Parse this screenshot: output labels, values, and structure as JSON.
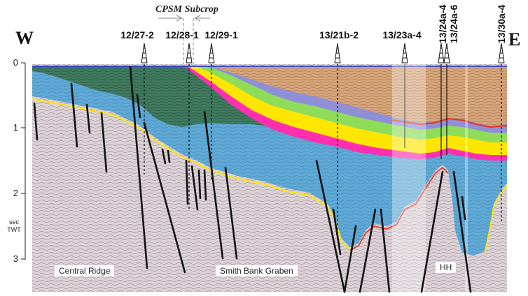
{
  "directions": {
    "west": "W",
    "east": "E"
  },
  "subcrop_label": "CPSM Subcrop",
  "wells": [
    {
      "name": "12/27-2"
    },
    {
      "name": "12/28-1"
    },
    {
      "name": "12/29-1"
    },
    {
      "name": "13/21b-2"
    },
    {
      "name": "13/23a-4"
    },
    {
      "name": "13/24a-4"
    },
    {
      "name": "13/24a-6"
    },
    {
      "name": "13/30a-4"
    }
  ],
  "time_axis": {
    "ticks": [
      "0",
      "1",
      "2",
      "3"
    ],
    "unit_line1": "sec",
    "unit_line2": "TWT"
  },
  "areas": {
    "central_ridge": "Central Ridge",
    "smith_bank": "Smith Bank Graben",
    "hh": "HH"
  },
  "colors": {
    "basement": "#dcd2d6",
    "blue_unit": "#5fa9d6",
    "green_unit": "#3f7a5f",
    "orange_unit": "#d6a57a",
    "light_green": "#8fdc5a",
    "yellow": "#ffe600",
    "magenta": "#ff2fb0",
    "red": "#e33a2a",
    "fault": "#111111"
  }
}
